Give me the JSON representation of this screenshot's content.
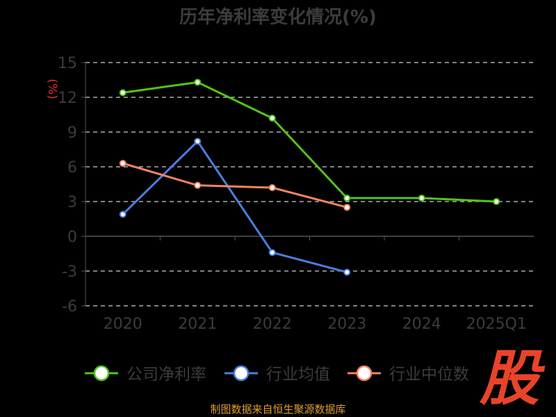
{
  "title": "历年净利率变化情况(%)",
  "source_note": "制图数据来自恒生聚源数据库",
  "logo_text": "股",
  "chart_data": {
    "type": "line",
    "title": "历年净利率变化情况(%)",
    "ylabel": "(%)",
    "xlabel": "",
    "categories": [
      "2020",
      "2021",
      "2022",
      "2023",
      "2024",
      "2025Q1"
    ],
    "ylim": [
      -6,
      15
    ],
    "yticks": [
      -6,
      -3,
      0,
      3,
      6,
      9,
      12,
      15
    ],
    "grid": true,
    "legend": "bottom",
    "series": [
      {
        "name": "公司净利率",
        "color": "#52c41a",
        "values": [
          12.4,
          13.3,
          10.2,
          3.3,
          3.3,
          3.0
        ]
      },
      {
        "name": "行业均值",
        "color": "#4a7fe0",
        "values": [
          1.9,
          8.2,
          -1.4,
          -3.1,
          null,
          null
        ]
      },
      {
        "name": "行业中位数",
        "color": "#f4845f",
        "values": [
          6.3,
          4.4,
          4.2,
          2.5,
          null,
          null
        ]
      }
    ]
  }
}
